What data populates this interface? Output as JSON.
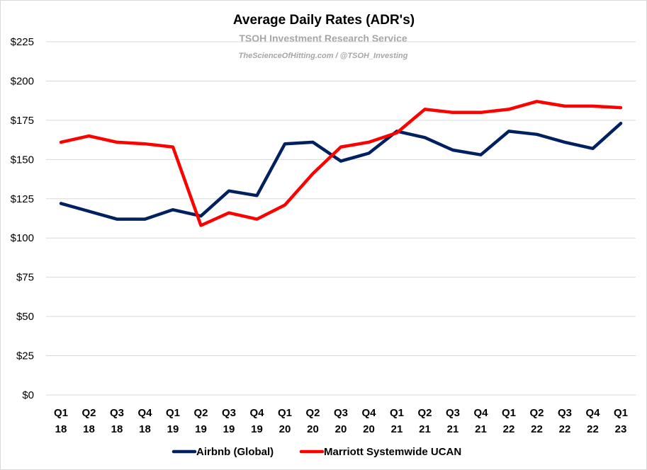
{
  "chart_data": {
    "type": "line",
    "title": "Average Daily Rates (ADR's)",
    "subtitle": "TSOH Investment Research Service",
    "subtitle2": "TheScienceOfHitting.com / @TSOH_Investing",
    "categories": [
      [
        "Q1",
        "18"
      ],
      [
        "Q2",
        "18"
      ],
      [
        "Q3",
        "18"
      ],
      [
        "Q4",
        "18"
      ],
      [
        "Q1",
        "19"
      ],
      [
        "Q2",
        "19"
      ],
      [
        "Q3",
        "19"
      ],
      [
        "Q4",
        "19"
      ],
      [
        "Q1",
        "20"
      ],
      [
        "Q2",
        "20"
      ],
      [
        "Q3",
        "20"
      ],
      [
        "Q4",
        "20"
      ],
      [
        "Q1",
        "21"
      ],
      [
        "Q2",
        "21"
      ],
      [
        "Q3",
        "21"
      ],
      [
        "Q4",
        "21"
      ],
      [
        "Q1",
        "22"
      ],
      [
        "Q2",
        "22"
      ],
      [
        "Q3",
        "22"
      ],
      [
        "Q4",
        "22"
      ],
      [
        "Q1",
        "23"
      ]
    ],
    "ylim": [
      0,
      225
    ],
    "yticks": [
      0,
      25,
      50,
      75,
      100,
      125,
      150,
      175,
      200,
      225
    ],
    "ytick_labels": [
      "$0",
      "$25",
      "$50",
      "$75",
      "$100",
      "$125",
      "$150",
      "$175",
      "$200",
      "$225"
    ],
    "grid": true,
    "legend_position": "bottom",
    "series": [
      {
        "name": "Airbnb (Global)",
        "color": "#002060",
        "values": [
          122,
          117,
          112,
          112,
          118,
          114,
          130,
          127,
          160,
          161,
          149,
          154,
          168,
          164,
          156,
          153,
          168,
          166,
          161,
          157,
          173
        ]
      },
      {
        "name": "Marriott Systemwide UCAN",
        "color": "#ff0000",
        "values": [
          161,
          165,
          161,
          160,
          158,
          108,
          116,
          112,
          121,
          141,
          158,
          161,
          167,
          182,
          180,
          180,
          182,
          187,
          184,
          184,
          183
        ]
      }
    ]
  }
}
